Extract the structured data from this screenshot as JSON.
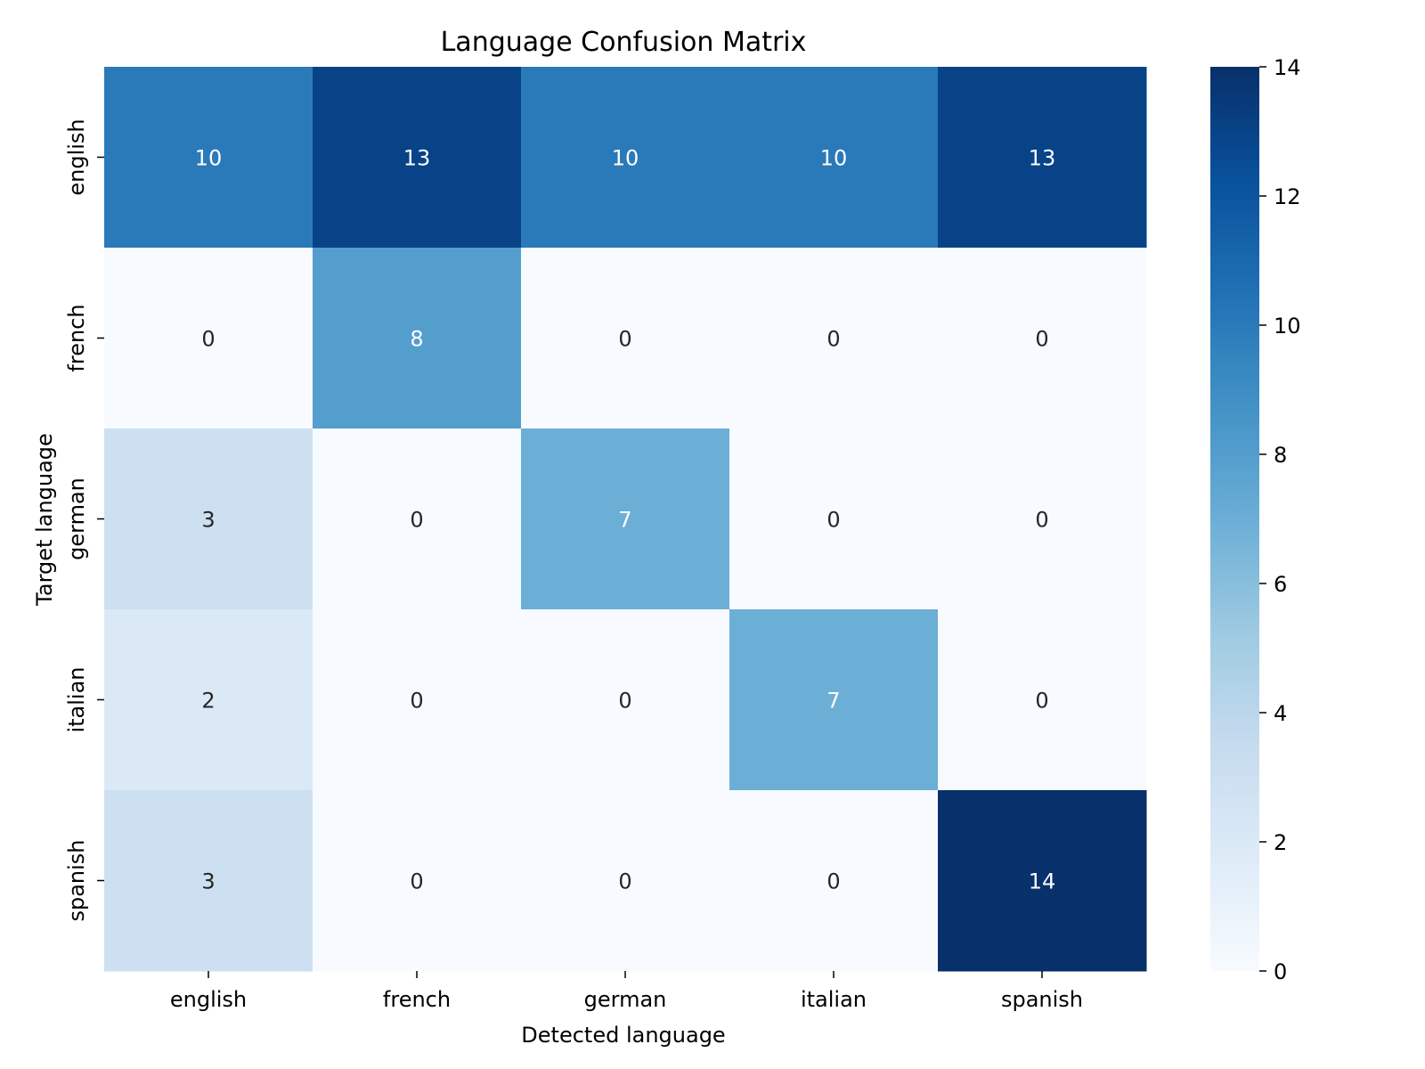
{
  "chart_data": {
    "type": "heatmap",
    "title": "Language Confusion Matrix",
    "xlabel": "Detected language",
    "ylabel": "Target language",
    "x_categories": [
      "english",
      "french",
      "german",
      "italian",
      "spanish"
    ],
    "y_categories": [
      "english",
      "french",
      "german",
      "italian",
      "spanish"
    ],
    "values": [
      [
        10,
        13,
        10,
        10,
        13
      ],
      [
        0,
        8,
        0,
        0,
        0
      ],
      [
        3,
        0,
        7,
        0,
        0
      ],
      [
        2,
        0,
        0,
        7,
        0
      ],
      [
        3,
        0,
        0,
        0,
        14
      ]
    ],
    "colorbar": {
      "range": [
        0,
        14
      ],
      "ticks": [
        "0",
        "2",
        "4",
        "6",
        "8",
        "10",
        "12",
        "14"
      ]
    },
    "colormap": [
      "#f7fbff",
      "#deebf7",
      "#c6dbef",
      "#9ecae1",
      "#6baed6",
      "#4292c6",
      "#2171b5",
      "#08519c",
      "#08306b"
    ],
    "annotation_colors": {
      "dark_text": "#262626",
      "light_text": "#ffffff"
    },
    "grid": false
  }
}
